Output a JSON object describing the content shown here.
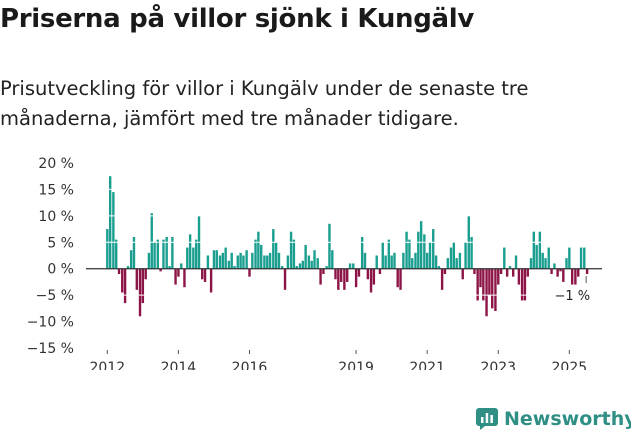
{
  "title": "Priserna på villor sjönk i Kungälv",
  "subtitle": "Prisutveckling för villor i Kungälv under de senaste tre månaderna, jämfört med tre månader tidigare.",
  "brand": {
    "name": "Newsworthy",
    "color": "#2f8f84",
    "icon": "bar-chart-speech-icon"
  },
  "colors": {
    "positive": "#1a9e8f",
    "negative": "#8c1446",
    "axis": "#333333",
    "grid": "#ffffff"
  },
  "chart_data": {
    "type": "bar",
    "title": "Priserna på villor sjönk i Kungälv",
    "xlabel": "",
    "ylabel": "",
    "ylim": [
      -15,
      20
    ],
    "yticks": [
      20,
      15,
      10,
      5,
      0,
      -5,
      -10,
      -15
    ],
    "ytick_labels": [
      "20 %",
      "15 %",
      "10 %",
      "5 %",
      "0 %",
      "−5 %",
      "−10 %",
      "−15 %"
    ],
    "xticks": [
      2012,
      2014,
      2016,
      2019,
      2021,
      2023,
      2025
    ],
    "xtick_labels": [
      "2012",
      "2014",
      "2016",
      "2019",
      "2021",
      "2023",
      "2025"
    ],
    "x_start": 2011.4,
    "x_end": 2026.2,
    "last_value_label": "−1 %",
    "series": [
      {
        "name": "Prisutveckling",
        "points": [
          {
            "x": 2012.0,
            "v": 7.5
          },
          {
            "x": 2012.08,
            "v": 17.5
          },
          {
            "x": 2012.17,
            "v": 14.5
          },
          {
            "x": 2012.25,
            "v": 5.5
          },
          {
            "x": 2012.33,
            "v": -1.0
          },
          {
            "x": 2012.42,
            "v": -4.5
          },
          {
            "x": 2012.5,
            "v": -6.5
          },
          {
            "x": 2012.58,
            "v": 0.5
          },
          {
            "x": 2012.67,
            "v": 3.5
          },
          {
            "x": 2012.75,
            "v": 6.0
          },
          {
            "x": 2012.83,
            "v": -4.0
          },
          {
            "x": 2012.92,
            "v": -9.0
          },
          {
            "x": 2013.0,
            "v": -6.5
          },
          {
            "x": 2013.08,
            "v": -2.0
          },
          {
            "x": 2013.17,
            "v": 3.0
          },
          {
            "x": 2013.25,
            "v": 10.5
          },
          {
            "x": 2013.33,
            "v": 5.0
          },
          {
            "x": 2013.42,
            "v": 5.5
          },
          {
            "x": 2013.5,
            "v": -0.5
          },
          {
            "x": 2013.58,
            "v": 5.5
          },
          {
            "x": 2013.67,
            "v": 6.0
          },
          {
            "x": 2013.75,
            "v": 0.5
          },
          {
            "x": 2013.83,
            "v": 6.0
          },
          {
            "x": 2013.92,
            "v": -3.0
          },
          {
            "x": 2014.0,
            "v": -1.5
          },
          {
            "x": 2014.08,
            "v": 1.0
          },
          {
            "x": 2014.17,
            "v": -3.5
          },
          {
            "x": 2014.25,
            "v": 4.0
          },
          {
            "x": 2014.33,
            "v": 6.5
          },
          {
            "x": 2014.42,
            "v": 4.0
          },
          {
            "x": 2014.5,
            "v": 5.5
          },
          {
            "x": 2014.58,
            "v": 10.0
          },
          {
            "x": 2014.67,
            "v": -2.0
          },
          {
            "x": 2014.75,
            "v": -2.5
          },
          {
            "x": 2014.83,
            "v": 2.5
          },
          {
            "x": 2014.92,
            "v": -4.5
          },
          {
            "x": 2015.0,
            "v": 3.5
          },
          {
            "x": 2015.08,
            "v": 3.5
          },
          {
            "x": 2015.17,
            "v": 2.5
          },
          {
            "x": 2015.25,
            "v": 3.0
          },
          {
            "x": 2015.33,
            "v": 4.0
          },
          {
            "x": 2015.42,
            "v": 1.5
          },
          {
            "x": 2015.5,
            "v": 3.0
          },
          {
            "x": 2015.58,
            "v": 0.5
          },
          {
            "x": 2015.67,
            "v": 2.5
          },
          {
            "x": 2015.75,
            "v": 3.0
          },
          {
            "x": 2015.83,
            "v": 2.5
          },
          {
            "x": 2015.92,
            "v": 3.5
          },
          {
            "x": 2016.0,
            "v": -1.5
          },
          {
            "x": 2016.08,
            "v": 3.0
          },
          {
            "x": 2016.17,
            "v": 5.5
          },
          {
            "x": 2016.25,
            "v": 7.0
          },
          {
            "x": 2016.33,
            "v": 4.5
          },
          {
            "x": 2016.42,
            "v": 2.5
          },
          {
            "x": 2016.5,
            "v": 2.5
          },
          {
            "x": 2016.58,
            "v": 3.0
          },
          {
            "x": 2016.67,
            "v": 7.5
          },
          {
            "x": 2016.75,
            "v": 5.0
          },
          {
            "x": 2016.83,
            "v": 3.0
          },
          {
            "x": 2016.92,
            "v": 0.5
          },
          {
            "x": 2017.0,
            "v": -4.0
          },
          {
            "x": 2017.08,
            "v": 2.5
          },
          {
            "x": 2017.17,
            "v": 7.0
          },
          {
            "x": 2017.25,
            "v": 5.5
          },
          {
            "x": 2017.33,
            "v": 0.5
          },
          {
            "x": 2017.42,
            "v": 1.0
          },
          {
            "x": 2017.5,
            "v": 1.5
          },
          {
            "x": 2017.58,
            "v": 4.5
          },
          {
            "x": 2017.67,
            "v": 2.5
          },
          {
            "x": 2017.75,
            "v": 1.5
          },
          {
            "x": 2017.83,
            "v": 3.5
          },
          {
            "x": 2017.92,
            "v": 2.0
          },
          {
            "x": 2018.0,
            "v": -3.0
          },
          {
            "x": 2018.08,
            "v": -1.0
          },
          {
            "x": 2018.17,
            "v": 0.5
          },
          {
            "x": 2018.25,
            "v": 8.5
          },
          {
            "x": 2018.33,
            "v": 3.5
          },
          {
            "x": 2018.42,
            "v": -2.0
          },
          {
            "x": 2018.5,
            "v": -4.0
          },
          {
            "x": 2018.58,
            "v": -2.5
          },
          {
            "x": 2018.67,
            "v": -4.0
          },
          {
            "x": 2018.75,
            "v": -2.5
          },
          {
            "x": 2018.83,
            "v": 1.0
          },
          {
            "x": 2018.92,
            "v": 1.0
          },
          {
            "x": 2019.0,
            "v": -3.5
          },
          {
            "x": 2019.08,
            "v": -1.5
          },
          {
            "x": 2019.17,
            "v": 6.0
          },
          {
            "x": 2019.25,
            "v": 3.0
          },
          {
            "x": 2019.33,
            "v": -2.0
          },
          {
            "x": 2019.42,
            "v": -4.5
          },
          {
            "x": 2019.5,
            "v": -3.0
          },
          {
            "x": 2019.58,
            "v": 2.5
          },
          {
            "x": 2019.67,
            "v": -1.0
          },
          {
            "x": 2019.75,
            "v": 5.0
          },
          {
            "x": 2019.83,
            "v": 2.5
          },
          {
            "x": 2019.92,
            "v": 5.5
          },
          {
            "x": 2020.0,
            "v": 2.5
          },
          {
            "x": 2020.08,
            "v": 3.0
          },
          {
            "x": 2020.17,
            "v": -3.5
          },
          {
            "x": 2020.25,
            "v": -4.0
          },
          {
            "x": 2020.33,
            "v": 3.0
          },
          {
            "x": 2020.42,
            "v": 7.0
          },
          {
            "x": 2020.5,
            "v": 5.5
          },
          {
            "x": 2020.58,
            "v": 2.0
          },
          {
            "x": 2020.67,
            "v": 3.0
          },
          {
            "x": 2020.75,
            "v": 7.0
          },
          {
            "x": 2020.83,
            "v": 9.0
          },
          {
            "x": 2020.92,
            "v": 6.5
          },
          {
            "x": 2021.0,
            "v": 3.0
          },
          {
            "x": 2021.08,
            "v": 5.0
          },
          {
            "x": 2021.17,
            "v": 7.5
          },
          {
            "x": 2021.25,
            "v": 2.5
          },
          {
            "x": 2021.33,
            "v": 0.5
          },
          {
            "x": 2021.42,
            "v": -4.0
          },
          {
            "x": 2021.5,
            "v": -1.0
          },
          {
            "x": 2021.58,
            "v": 2.0
          },
          {
            "x": 2021.67,
            "v": 4.0
          },
          {
            "x": 2021.75,
            "v": 5.0
          },
          {
            "x": 2021.83,
            "v": 2.0
          },
          {
            "x": 2021.92,
            "v": 3.0
          },
          {
            "x": 2022.0,
            "v": -2.0
          },
          {
            "x": 2022.08,
            "v": 5.0
          },
          {
            "x": 2022.17,
            "v": 10.0
          },
          {
            "x": 2022.25,
            "v": 6.0
          },
          {
            "x": 2022.33,
            "v": -1.0
          },
          {
            "x": 2022.42,
            "v": -6.0
          },
          {
            "x": 2022.5,
            "v": -3.5
          },
          {
            "x": 2022.58,
            "v": -6.0
          },
          {
            "x": 2022.67,
            "v": -9.0
          },
          {
            "x": 2022.75,
            "v": -5.0
          },
          {
            "x": 2022.83,
            "v": -7.5
          },
          {
            "x": 2022.92,
            "v": -8.0
          },
          {
            "x": 2023.0,
            "v": -3.0
          },
          {
            "x": 2023.08,
            "v": -1.0
          },
          {
            "x": 2023.17,
            "v": 4.0
          },
          {
            "x": 2023.25,
            "v": -1.5
          },
          {
            "x": 2023.33,
            "v": 0.5
          },
          {
            "x": 2023.42,
            "v": -1.5
          },
          {
            "x": 2023.5,
            "v": 2.5
          },
          {
            "x": 2023.58,
            "v": -3.0
          },
          {
            "x": 2023.67,
            "v": -6.0
          },
          {
            "x": 2023.75,
            "v": -6.0
          },
          {
            "x": 2023.83,
            "v": -1.5
          },
          {
            "x": 2023.92,
            "v": 2.0
          },
          {
            "x": 2024.0,
            "v": 7.0
          },
          {
            "x": 2024.08,
            "v": 4.5
          },
          {
            "x": 2024.17,
            "v": 7.0
          },
          {
            "x": 2024.25,
            "v": 3.0
          },
          {
            "x": 2024.33,
            "v": 2.0
          },
          {
            "x": 2024.42,
            "v": 4.0
          },
          {
            "x": 2024.5,
            "v": -1.0
          },
          {
            "x": 2024.58,
            "v": 1.0
          },
          {
            "x": 2024.67,
            "v": -1.5
          },
          {
            "x": 2024.75,
            "v": -0.5
          },
          {
            "x": 2024.83,
            "v": -2.5
          },
          {
            "x": 2024.92,
            "v": 2.0
          },
          {
            "x": 2025.0,
            "v": 4.0
          },
          {
            "x": 2025.08,
            "v": -3.0
          },
          {
            "x": 2025.17,
            "v": -3.0
          },
          {
            "x": 2025.25,
            "v": -1.5
          },
          {
            "x": 2025.33,
            "v": 4.0
          },
          {
            "x": 2025.42,
            "v": 4.0
          },
          {
            "x": 2025.5,
            "v": -1.0
          }
        ]
      }
    ]
  }
}
